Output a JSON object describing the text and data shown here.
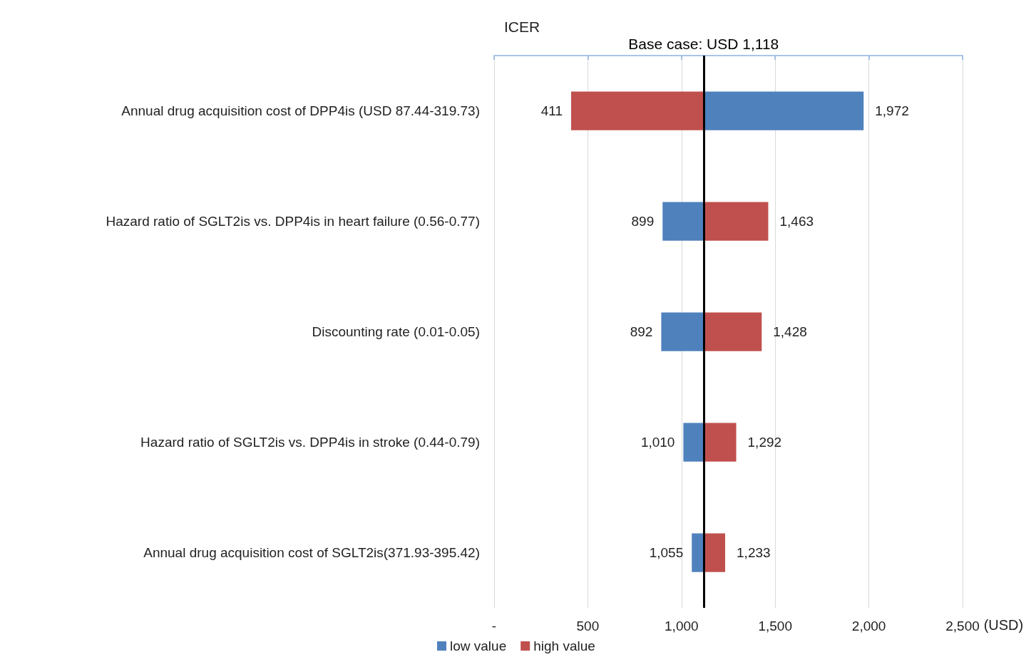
{
  "chart_data": {
    "type": "bar",
    "orientation": "horizontal",
    "title": "ICER",
    "xlabel": "(USD)",
    "categories": [
      "Annual drug acquisition cost of DPP4is (USD 87.44-319.73)",
      "Hazard ratio of SGLT2is vs. DPP4is in heart failure (0.56-0.77)",
      "Discounting rate (0.01-0.05)",
      "Hazard ratio of SGLT2is vs. DPP4is in stroke (0.44-0.79)",
      "Annual drug acquisition cost of SGLT2is(371.93-395.42)"
    ],
    "series": [
      {
        "name": "low value",
        "color": "#4f81bd",
        "base": [
          1118,
          1118,
          1118,
          1118,
          1118
        ],
        "values": [
          854,
          -219,
          -226,
          -108,
          -63
        ],
        "value_labels": [
          "1,972",
          "899",
          "892",
          "1,010",
          "1,055"
        ]
      },
      {
        "name": "high value",
        "color": "#c0504d",
        "base": [
          1118,
          1118,
          1118,
          1118,
          1118
        ],
        "values": [
          -707,
          345,
          310,
          174,
          115
        ],
        "value_labels": [
          "411",
          "1,463",
          "1,428",
          "1,292",
          "1,233"
        ]
      }
    ],
    "xlim": [
      0,
      2500
    ],
    "xticks": [
      {
        "value": 0,
        "label": "-"
      },
      500,
      {
        "value": 1000,
        "label": "1,000"
      },
      {
        "value": 1500,
        "label": "1,500"
      },
      {
        "value": 2000,
        "label": "2,000"
      },
      {
        "value": 2500,
        "label": "2,500"
      }
    ],
    "ref_lines": [
      {
        "axis": "x",
        "value": 1118,
        "label": "Base case: USD 1,118",
        "color": "#000000"
      }
    ],
    "grid": "x",
    "legend": "bottom"
  }
}
